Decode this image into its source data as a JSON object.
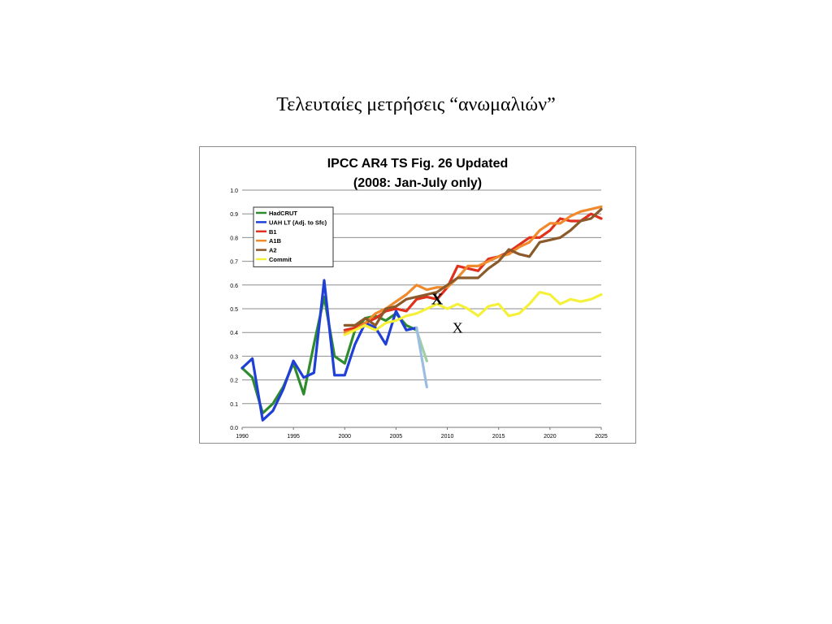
{
  "slide": {
    "title": "Τελευταίες μετρήσεις “ανωμαλιών”"
  },
  "chart_data": {
    "type": "line",
    "title": "IPCC AR4 TS Fig. 26 Updated",
    "subtitle": "(2008: Jan-July only)",
    "xlim": [
      1990,
      2025
    ],
    "ylim": [
      0.0,
      1.0
    ],
    "x_ticks": [
      1990,
      1995,
      2000,
      2005,
      2010,
      2015,
      2020,
      2025
    ],
    "y_ticks": [
      "0.0",
      "0.1",
      "0.2",
      "0.3",
      "0.4",
      "0.5",
      "0.6",
      "0.7",
      "0.8",
      "0.9",
      "1.0"
    ],
    "grid": "horizontal",
    "legend_position": "top-left",
    "series": [
      {
        "name": "HadCRUT",
        "color": "#2e8b2e",
        "legend": true,
        "x": [
          1990,
          1991,
          1992,
          1993,
          1994,
          1995,
          1996,
          1997,
          1998,
          1999,
          2000,
          2001,
          2002,
          2003,
          2004,
          2005,
          2006,
          2007
        ],
        "y": [
          0.25,
          0.21,
          0.06,
          0.1,
          0.17,
          0.27,
          0.14,
          0.35,
          0.55,
          0.3,
          0.27,
          0.41,
          0.46,
          0.47,
          0.45,
          0.48,
          0.43,
          0.41
        ]
      },
      {
        "name": "",
        "color": "#9ecf9e",
        "legend": false,
        "x": [
          2007,
          2008
        ],
        "y": [
          0.41,
          0.28
        ]
      },
      {
        "name": "UAH LT (Adj. to Sfc)",
        "color": "#1f3fd6",
        "legend": true,
        "x": [
          1990,
          1991,
          1992,
          1993,
          1994,
          1995,
          1996,
          1997,
          1998,
          1999,
          2000,
          2001,
          2002,
          2003,
          2004,
          2005,
          2006,
          2007
        ],
        "y": [
          0.25,
          0.29,
          0.03,
          0.07,
          0.16,
          0.28,
          0.21,
          0.23,
          0.62,
          0.22,
          0.22,
          0.35,
          0.44,
          0.42,
          0.35,
          0.49,
          0.41,
          0.42
        ]
      },
      {
        "name": "",
        "color": "#9bbde3",
        "legend": false,
        "x": [
          2007,
          2008
        ],
        "y": [
          0.42,
          0.17
        ]
      },
      {
        "name": "B1",
        "color": "#e0311c",
        "legend": true,
        "x": [
          2000,
          2001,
          2002,
          2003,
          2004,
          2005,
          2006,
          2007,
          2008,
          2009,
          2010,
          2011,
          2012,
          2013,
          2014,
          2015,
          2016,
          2017,
          2018,
          2019,
          2020,
          2021,
          2022,
          2023,
          2024,
          2025
        ],
        "y": [
          0.41,
          0.42,
          0.44,
          0.46,
          0.49,
          0.5,
          0.49,
          0.54,
          0.55,
          0.54,
          0.59,
          0.68,
          0.67,
          0.66,
          0.71,
          0.72,
          0.74,
          0.77,
          0.8,
          0.8,
          0.83,
          0.88,
          0.87,
          0.87,
          0.9,
          0.88
        ]
      },
      {
        "name": "A1B",
        "color": "#f08a2c",
        "legend": true,
        "x": [
          2000,
          2001,
          2002,
          2003,
          2004,
          2005,
          2006,
          2007,
          2008,
          2009,
          2010,
          2011,
          2012,
          2013,
          2014,
          2015,
          2016,
          2017,
          2018,
          2019,
          2020,
          2021,
          2022,
          2023,
          2024,
          2025
        ],
        "y": [
          0.4,
          0.41,
          0.44,
          0.48,
          0.5,
          0.53,
          0.56,
          0.6,
          0.58,
          0.59,
          0.59,
          0.63,
          0.68,
          0.68,
          0.7,
          0.72,
          0.73,
          0.76,
          0.78,
          0.83,
          0.86,
          0.86,
          0.89,
          0.91,
          0.92,
          0.93
        ]
      },
      {
        "name": "A2",
        "color": "#8b5a2b",
        "legend": true,
        "x": [
          2000,
          2001,
          2002,
          2003,
          2004,
          2005,
          2006,
          2007,
          2008,
          2009,
          2010,
          2011,
          2012,
          2013,
          2014,
          2015,
          2016,
          2017,
          2018,
          2019,
          2020,
          2021,
          2022,
          2023,
          2024,
          2025
        ],
        "y": [
          0.43,
          0.43,
          0.46,
          0.43,
          0.5,
          0.51,
          0.54,
          0.55,
          0.56,
          0.57,
          0.6,
          0.63,
          0.63,
          0.63,
          0.67,
          0.7,
          0.75,
          0.73,
          0.72,
          0.78,
          0.79,
          0.8,
          0.83,
          0.87,
          0.88,
          0.92
        ]
      },
      {
        "name": "Commit",
        "color": "#f5f13a",
        "legend": true,
        "x": [
          2000,
          2001,
          2002,
          2003,
          2004,
          2005,
          2006,
          2007,
          2008,
          2009,
          2010,
          2011,
          2012,
          2013,
          2014,
          2015,
          2016,
          2017,
          2018,
          2019,
          2020,
          2021,
          2022,
          2023,
          2024,
          2025
        ],
        "y": [
          0.39,
          0.41,
          0.43,
          0.41,
          0.44,
          0.45,
          0.47,
          0.48,
          0.5,
          0.52,
          0.5,
          0.52,
          0.5,
          0.47,
          0.51,
          0.52,
          0.47,
          0.48,
          0.52,
          0.57,
          0.56,
          0.52,
          0.54,
          0.53,
          0.54,
          0.56
        ]
      }
    ],
    "annotations": [
      {
        "text": "X",
        "x": 2009,
        "y": 0.54,
        "bold": true
      },
      {
        "text": "X",
        "x": 2011,
        "y": 0.42,
        "bold": false
      }
    ]
  }
}
